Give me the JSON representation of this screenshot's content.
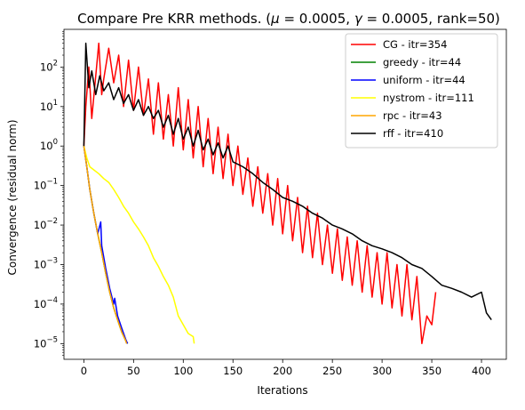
{
  "chart_data": {
    "type": "line",
    "title": "Compare Pre KRR methods. (μ = 0.0005, γ = 0.0005, rank=50)",
    "title_parts": {
      "prefix": "Compare Pre KRR methods. (",
      "mu_symbol": "μ",
      "mu_value": " = 0.0005, ",
      "gamma_symbol": "γ",
      "gamma_value": " = 0.0005, rank=50)"
    },
    "xlabel": "Iterations",
    "ylabel": "Convergence (residual norm)",
    "xlim": [
      -20,
      425
    ],
    "ylim": [
      4e-06,
      900
    ],
    "yscale": "log",
    "grid": false,
    "legend_position": "top-right",
    "xticks": [
      0,
      50,
      100,
      150,
      200,
      250,
      300,
      350,
      400
    ],
    "xtick_labels": [
      "0",
      "50",
      "100",
      "150",
      "200",
      "250",
      "300",
      "350",
      "400"
    ],
    "yticks": [
      1e-05,
      0.0001,
      0.001,
      0.01,
      0.1,
      1,
      10,
      100
    ],
    "ytick_labels": [
      {
        "base": "10",
        "exp": "−5"
      },
      {
        "base": "10",
        "exp": "−4"
      },
      {
        "base": "10",
        "exp": "−3"
      },
      {
        "base": "10",
        "exp": "−2"
      },
      {
        "base": "10",
        "exp": "−1"
      },
      {
        "base": "10",
        "exp": "0"
      },
      {
        "base": "10",
        "exp": "1"
      },
      {
        "base": "10",
        "exp": "2"
      }
    ],
    "series": [
      {
        "name": "CG - itr=354",
        "color": "#ff0000",
        "x": [
          0,
          2,
          5,
          8,
          12,
          15,
          18,
          20,
          25,
          30,
          35,
          40,
          45,
          50,
          55,
          60,
          65,
          70,
          75,
          80,
          85,
          90,
          95,
          100,
          105,
          110,
          115,
          120,
          125,
          130,
          135,
          140,
          145,
          150,
          155,
          160,
          165,
          170,
          175,
          180,
          185,
          190,
          195,
          200,
          205,
          210,
          215,
          220,
          225,
          230,
          235,
          240,
          245,
          250,
          255,
          260,
          265,
          270,
          275,
          280,
          285,
          290,
          295,
          300,
          305,
          310,
          315,
          320,
          325,
          330,
          335,
          340,
          345,
          350,
          354
        ],
        "y": [
          1,
          10,
          100,
          5,
          60,
          400,
          20,
          50,
          300,
          40,
          200,
          10,
          150,
          8,
          100,
          6,
          50,
          2,
          40,
          1.5,
          20,
          1,
          30,
          0.8,
          15,
          0.5,
          10,
          0.3,
          5,
          0.2,
          3,
          0.15,
          2,
          0.1,
          1,
          0.06,
          0.5,
          0.03,
          0.3,
          0.02,
          0.2,
          0.01,
          0.15,
          0.006,
          0.1,
          0.004,
          0.05,
          0.002,
          0.03,
          0.0015,
          0.02,
          0.001,
          0.01,
          0.0006,
          0.008,
          0.0004,
          0.005,
          0.0003,
          0.004,
          0.0002,
          0.003,
          0.00015,
          0.002,
          0.0001,
          0.002,
          8e-05,
          0.001,
          5e-05,
          0.001,
          4e-05,
          0.0005,
          1e-05,
          5e-05,
          3e-05,
          0.0002
        ]
      },
      {
        "name": "greedy - itr=44",
        "color": "#008000",
        "x": [
          0,
          3,
          6,
          10,
          14,
          18,
          22,
          26,
          30,
          34,
          38,
          42,
          44
        ],
        "y": [
          1,
          0.3,
          0.08,
          0.02,
          0.006,
          0.002,
          0.0006,
          0.0002,
          8e-05,
          4e-05,
          2e-05,
          1.2e-05,
          1e-05
        ]
      },
      {
        "name": "uniform - itr=44",
        "color": "#0000ff",
        "x": [
          0,
          3,
          6,
          10,
          14,
          17,
          18,
          22,
          26,
          30,
          31,
          34,
          38,
          42,
          44
        ],
        "y": [
          1,
          0.3,
          0.08,
          0.02,
          0.006,
          0.012,
          0.003,
          0.0008,
          0.00025,
          0.0001,
          0.00014,
          5e-05,
          2.5e-05,
          1.3e-05,
          1e-05
        ]
      },
      {
        "name": "nystrom - itr=111",
        "color": "#ffff00",
        "x": [
          0,
          3,
          6,
          10,
          15,
          20,
          25,
          30,
          35,
          40,
          45,
          50,
          55,
          60,
          65,
          70,
          75,
          80,
          85,
          90,
          95,
          100,
          105,
          110,
          111
        ],
        "y": [
          1,
          0.5,
          0.3,
          0.25,
          0.2,
          0.15,
          0.12,
          0.08,
          0.05,
          0.03,
          0.02,
          0.012,
          0.008,
          0.005,
          0.003,
          0.0015,
          0.0009,
          0.0005,
          0.0003,
          0.00015,
          5e-05,
          3e-05,
          1.8e-05,
          1.5e-05,
          1e-05
        ]
      },
      {
        "name": "rpc - itr=43",
        "color": "#ffa500",
        "x": [
          0,
          3,
          6,
          10,
          14,
          18,
          22,
          26,
          30,
          34,
          38,
          42,
          43
        ],
        "y": [
          1,
          0.3,
          0.08,
          0.02,
          0.006,
          0.002,
          0.0006,
          0.0002,
          8e-05,
          4e-05,
          2e-05,
          1.2e-05,
          1e-05
        ]
      },
      {
        "name": "rff - itr=410",
        "color": "#000000",
        "x": [
          0,
          2,
          5,
          8,
          12,
          16,
          20,
          25,
          30,
          35,
          40,
          45,
          50,
          55,
          60,
          65,
          70,
          75,
          80,
          85,
          90,
          95,
          100,
          105,
          110,
          115,
          120,
          125,
          130,
          135,
          140,
          145,
          150,
          160,
          170,
          180,
          190,
          200,
          210,
          220,
          230,
          240,
          250,
          260,
          270,
          280,
          290,
          300,
          310,
          320,
          330,
          340,
          350,
          360,
          370,
          380,
          390,
          400,
          405,
          410
        ],
        "y": [
          1,
          400,
          30,
          80,
          20,
          60,
          25,
          40,
          15,
          30,
          12,
          20,
          8,
          15,
          6,
          10,
          5,
          8,
          3,
          6,
          2,
          5,
          1.5,
          3,
          1,
          2.5,
          0.8,
          1.5,
          0.6,
          1.2,
          0.5,
          1,
          0.4,
          0.3,
          0.2,
          0.12,
          0.08,
          0.05,
          0.04,
          0.03,
          0.02,
          0.015,
          0.01,
          0.008,
          0.006,
          0.004,
          0.003,
          0.0025,
          0.002,
          0.0015,
          0.001,
          0.0008,
          0.0005,
          0.0003,
          0.00025,
          0.0002,
          0.00015,
          0.0002,
          6e-05,
          4e-05
        ]
      }
    ]
  }
}
